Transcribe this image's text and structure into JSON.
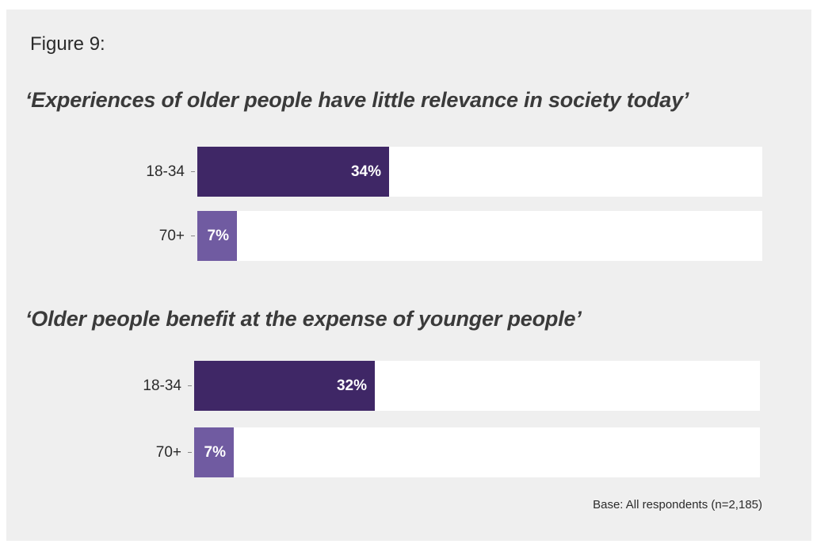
{
  "figure_label": "Figure 9:",
  "colors": {
    "young": "#3f2766",
    "old": "#705ba1",
    "track": "#ffffff",
    "background": "#efefef"
  },
  "chart_data": [
    {
      "type": "bar",
      "orientation": "horizontal",
      "title": "‘Experiences of older people have little relevance in society today’",
      "categories": [
        "18-34",
        "70+"
      ],
      "values": [
        34,
        7
      ],
      "value_labels": [
        "34%",
        "7%"
      ],
      "xlim": [
        0,
        100
      ],
      "unit": "%"
    },
    {
      "type": "bar",
      "orientation": "horizontal",
      "title": "‘Older people benefit at the expense of younger people’",
      "categories": [
        "18-34",
        "70+"
      ],
      "values": [
        32,
        7
      ],
      "value_labels": [
        "32%",
        "7%"
      ],
      "xlim": [
        0,
        100
      ],
      "unit": "%"
    }
  ],
  "base_note": "Base: All respondents (n=2,185)"
}
